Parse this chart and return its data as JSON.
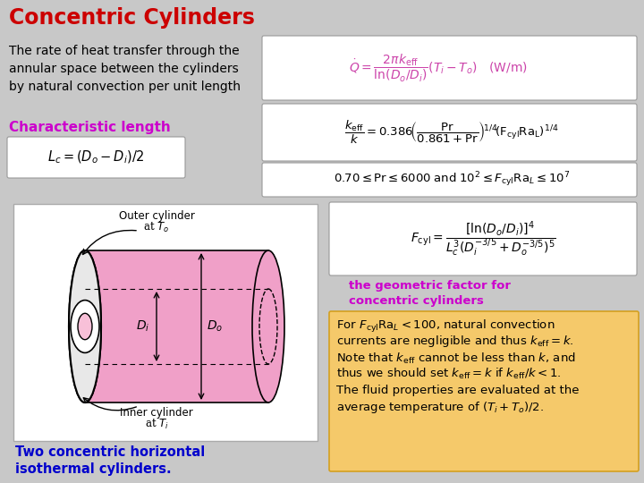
{
  "title": "Concentric Cylinders",
  "title_color": "#CC0000",
  "bg_color": "#C8C8C8",
  "text_color": "#000000",
  "purple_color": "#CC00CC",
  "blue_color": "#0000BB",
  "orange_box_color": "#F5C96A",
  "formula_box_color": "#F0F0F0",
  "formula_color": "#CC44AA",
  "desc_text": "The rate of heat transfer through the\nannular space between the cylinders\nby natural convection per unit length",
  "char_length_label": "Characteristic length",
  "geom_label": "the geometric factor for\nconcentric cylinders",
  "caption": "Two concentric horizontal\nisothermal cylinders.",
  "caption_color": "#0000CC",
  "pink_cyl": "#F0A0C8",
  "pink_inner": "#F8C0D8"
}
